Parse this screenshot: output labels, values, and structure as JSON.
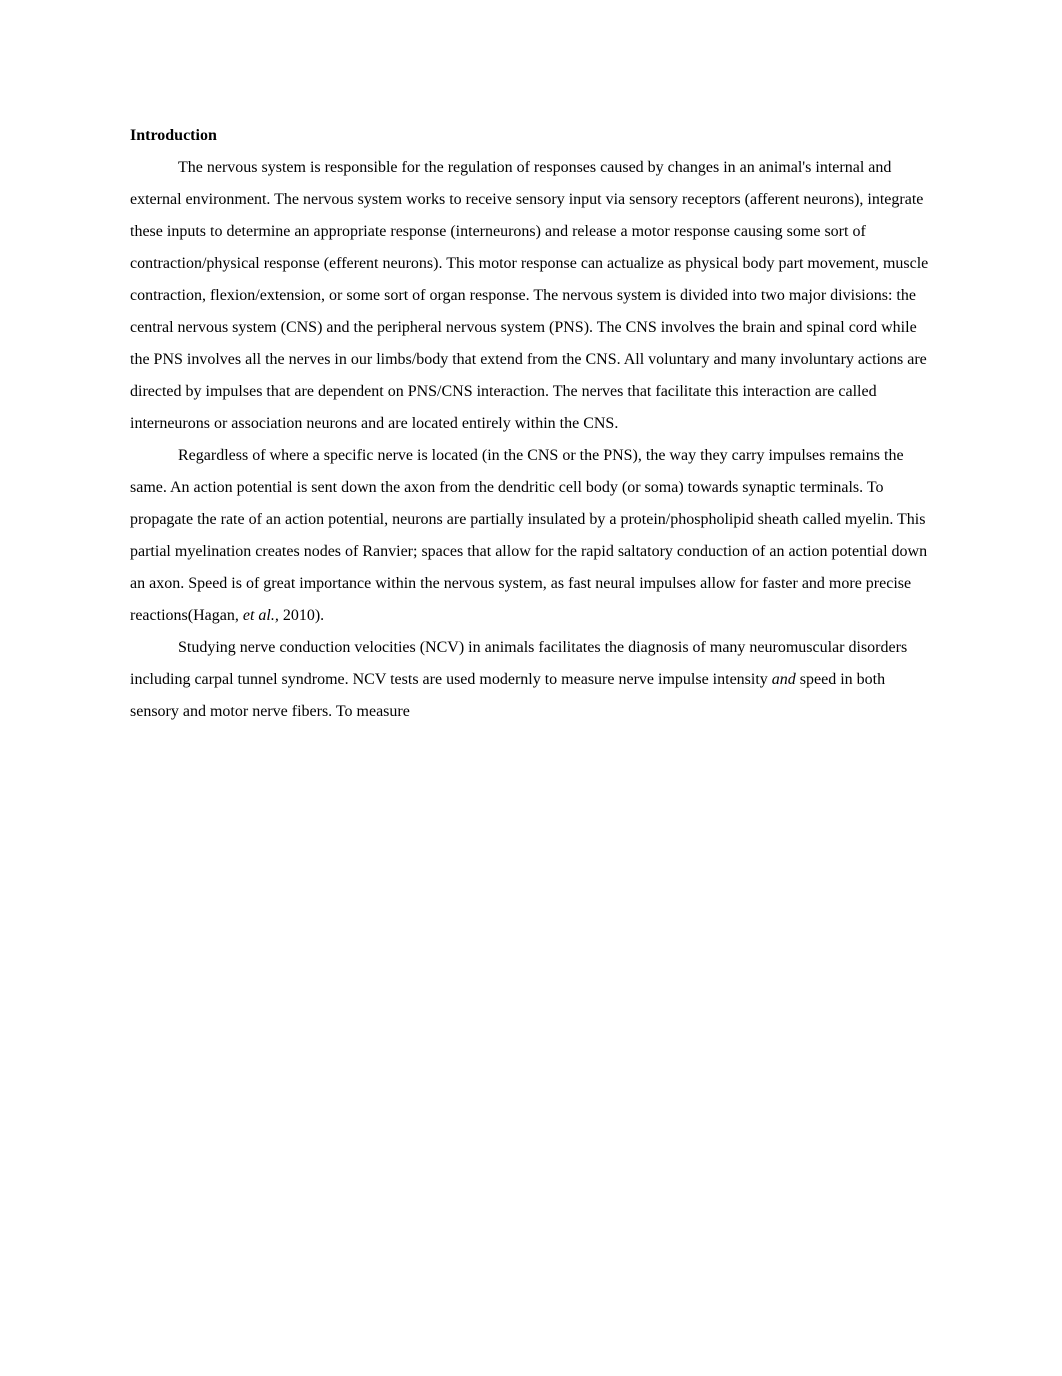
{
  "document": {
    "background_color": "#ffffff",
    "text_color": "#000000",
    "font_family": "Times New Roman",
    "font_size_pt": 12,
    "line_spacing": 2.0,
    "heading": "Introduction",
    "paragraphs": [
      {
        "segments": [
          {
            "text": "The nervous system is responsible for the regulation of responses caused by changes in an animal's internal and external environment. The nervous system works to receive sensory input via sensory receptors (afferent neurons), integrate these inputs to determine an appropriate response (interneurons) and release a motor response causing some sort of contraction/physical response (efferent neurons). This motor response can actualize as physical body part movement, muscle contraction, flexion/extension, or some sort of organ response. The nervous system is divided into two major divisions: the central nervous system (CNS) and the peripheral nervous system (PNS). The CNS involves the brain and spinal cord while the PNS involves all the nerves in our limbs/body that extend from the CNS. All voluntary and many involuntary actions are directed by impulses that are dependent on PNS/CNS interaction. The nerves that facilitate this interaction are called interneurons or association neurons and are located entirely within the CNS.",
            "italic": false
          }
        ]
      },
      {
        "segments": [
          {
            "text": "Regardless of where a specific nerve is located (in the CNS or the PNS), the way they carry impulses remains the same. An action potential is sent down the axon from the dendritic cell body (or soma) towards synaptic terminals. To propagate the rate of an action potential, neurons are partially insulated by a protein/phospholipid sheath called myelin. This partial myelination creates nodes of Ranvier; spaces that allow for the rapid saltatory conduction of an action potential down an axon. Speed is of great importance within the nervous system, as fast neural impulses allow for faster and more precise reactions(Hagan, ",
            "italic": false
          },
          {
            "text": "et al.,",
            "italic": true
          },
          {
            "text": " 2010).",
            "italic": false
          }
        ]
      },
      {
        "segments": [
          {
            "text": "Studying nerve conduction velocities (NCV) in animals facilitates the diagnosis of many neuromuscular disorders including carpal tunnel syndrome. NCV tests are used modernly to measure nerve impulse intensity ",
            "italic": false
          },
          {
            "text": "and",
            "italic": true
          },
          {
            "text": " speed in both sensory and motor nerve fibers. To measure",
            "italic": false
          }
        ]
      }
    ]
  }
}
